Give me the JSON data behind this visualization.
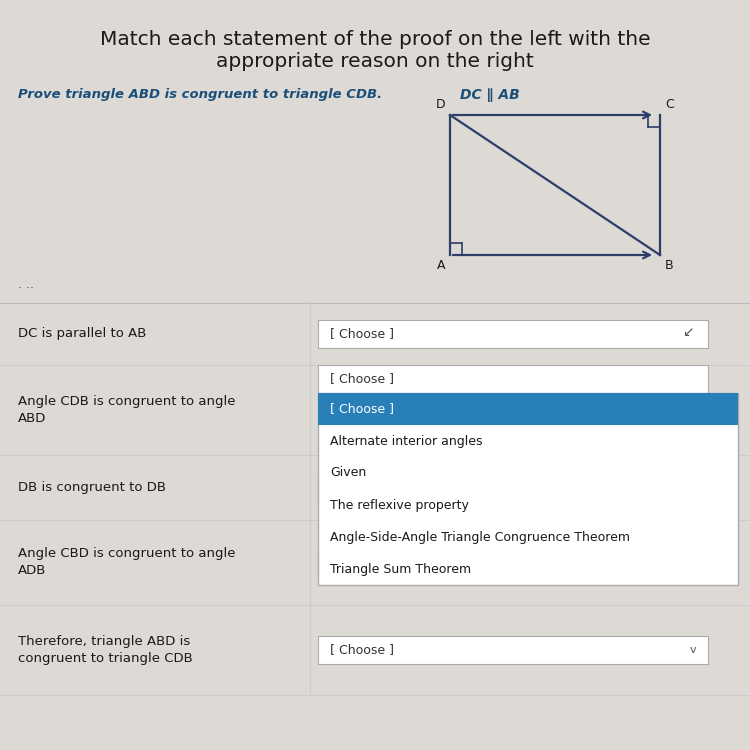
{
  "title_line1": "Match each statement of the proof on the left with the",
  "title_line2": "appropriate reason on the right",
  "title_fontsize": 14.5,
  "bg_color": "#ddd9d4",
  "prove_text": "Prove triangle ABD is congruent to triangle CDB.",
  "given_text": "DC ∥ AB",
  "prove_color": "#1a4f7a",
  "rect_color": "#2c3e6a",
  "statements": [
    "DC is parallel to AB",
    "Angle CDB is congruent to angle\nABD",
    "DB is congruent to DB",
    "Angle CBD is congruent to angle\nADB",
    "Therefore, triangle ABD is\ncongruent to triangle CDB"
  ],
  "dropdown_options": [
    "[ Choose ]",
    "Alternate interior angles",
    "Given",
    "The reflexive property",
    "Angle-Side-Angle Triangle Congruence Theorem",
    "Triangle Sum Theorem"
  ],
  "dropdown_highlight_color": "#2980b9",
  "row_border_color": "#cccccc",
  "white": "#ffffff",
  "light_gray": "#f0eeec"
}
